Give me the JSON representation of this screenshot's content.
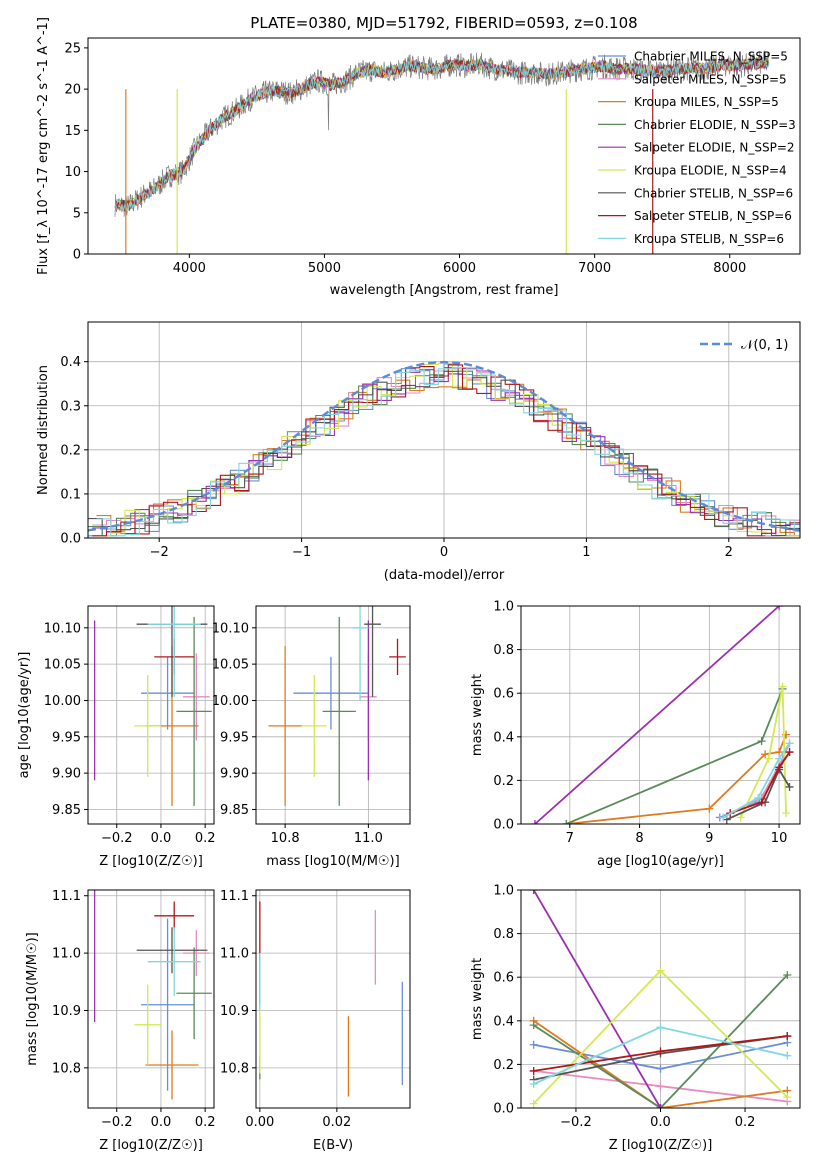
{
  "chart_data": [
    {
      "type": "line",
      "title": "PLATE=0380, MJD=51792, FIBERID=0593, z=0.108",
      "xlabel": "wavelength [Angstrom, rest frame]",
      "ylabel": "Flux [f_λ 10^-17 erg cm^-2 s^-1 A^-1]",
      "xlim": [
        3250,
        8520
      ],
      "ylim": [
        0,
        26.2
      ],
      "xticks": [
        4000,
        5000,
        6000,
        7000,
        8000
      ],
      "yticks": [
        0,
        5,
        10,
        15,
        20,
        25
      ],
      "grid": false,
      "legend": "top-right",
      "spectrum": {
        "x": [
          3450,
          3550,
          3650,
          3750,
          3850,
          3950,
          4050,
          4150,
          4250,
          4350,
          4450,
          4550,
          4650,
          4750,
          4850,
          4950,
          5050,
          5150,
          5250,
          5350,
          5450,
          5550,
          5650,
          5750,
          5850,
          5950,
          6050,
          6150,
          6250,
          6350,
          6450,
          6550,
          6650,
          6750,
          6850,
          6950,
          7050,
          7150,
          7250,
          7350,
          7450,
          7550,
          7650,
          7750,
          7850,
          7950,
          8050,
          8150,
          8250
        ],
        "y": [
          6,
          5.8,
          7,
          8,
          9.5,
          10,
          13,
          15,
          16.5,
          17.5,
          18.8,
          19.5,
          19.8,
          19.5,
          20.2,
          21,
          20.5,
          21,
          22,
          22.3,
          22,
          22.5,
          22.8,
          22.5,
          22.5,
          23,
          22.8,
          23,
          22.5,
          22.2,
          22,
          22,
          21.8,
          22,
          22.3,
          22.5,
          22.8,
          22.5,
          22.5,
          22.3,
          22.2,
          22.3,
          22.5,
          22.5,
          22.5,
          23,
          22.8,
          23,
          23.2
        ]
      },
      "series": [
        {
          "name": "Chabrier MILES, N_SSP=5",
          "color": "#6a8fd8"
        },
        {
          "name": "Salpeter MILES, N_SSP=5",
          "color": "#e88cc0"
        },
        {
          "name": "Kroupa MILES, N_SSP=5",
          "color": "#e07a1f"
        },
        {
          "name": "Chabrier ELODIE, N_SSP=3",
          "color": "#5a8a5a"
        },
        {
          "name": "Salpeter ELODIE, N_SSP=2",
          "color": "#9b30b0"
        },
        {
          "name": "Kroupa ELODIE, N_SSP=4",
          "color": "#d4e850"
        },
        {
          "name": "Chabrier STELIB, N_SSP=6",
          "color": "#555555"
        },
        {
          "name": "Salpeter STELIB, N_SSP=6",
          "color": "#b01818"
        },
        {
          "name": "Kroupa STELIB, N_SSP=6",
          "color": "#80d8e0"
        }
      ]
    },
    {
      "type": "line",
      "xlabel": "(data-model)/error",
      "ylabel": "Normed distribution",
      "xlim": [
        -2.5,
        2.5
      ],
      "ylim": [
        0,
        0.49
      ],
      "xticks": [
        -2,
        -1,
        0,
        1,
        2
      ],
      "yticks": [
        0.0,
        0.1,
        0.2,
        0.3,
        0.4
      ],
      "grid": true,
      "legend": "top-right",
      "legend_entries": [
        "𝒩(0, 1)"
      ],
      "normal": {
        "mu": 0,
        "sigma": 1,
        "color": "#5b8bd9"
      }
    },
    {
      "type": "scatter",
      "xlabel": "Z [log10(Z/Z☉)]",
      "ylabel": "age  [log10(age/yr)]",
      "xlim": [
        -0.33,
        0.24
      ],
      "ylim": [
        9.83,
        10.13
      ],
      "xticks": [
        -0.2,
        0.0,
        0.2
      ],
      "yticks": [
        9.85,
        9.9,
        9.95,
        10.0,
        10.05,
        10.1
      ],
      "grid": true,
      "points": [
        {
          "x": 0.03,
          "y": 10.01,
          "xerr": 0.12,
          "yerr": 0.05,
          "color": "#6a8fd8"
        },
        {
          "x": 0.16,
          "y": 10.005,
          "xerr": 0.06,
          "yerr": 0.06,
          "color": "#e88cc0"
        },
        {
          "x": 0.05,
          "y": 9.965,
          "xerr": 0.12,
          "yerr": 0.11,
          "color": "#e07a1f"
        },
        {
          "x": 0.15,
          "y": 9.985,
          "xerr": 0.08,
          "yerr": 0.13,
          "color": "#5a8a5a"
        },
        {
          "x": -0.3,
          "y": 10.0,
          "xerr": 0.0,
          "yerr": 0.11,
          "color": "#9b30b0"
        },
        {
          "x": -0.06,
          "y": 9.965,
          "xerr": 0.06,
          "yerr": 0.07,
          "color": "#d4e850"
        },
        {
          "x": 0.05,
          "y": 10.105,
          "xerr": 0.16,
          "yerr": 0.1,
          "color": "#555555"
        },
        {
          "x": 0.06,
          "y": 10.06,
          "xerr": 0.09,
          "yerr": 0.025,
          "color": "#b01818"
        },
        {
          "x": 0.06,
          "y": 10.105,
          "xerr": 0.12,
          "yerr": 0.1,
          "color": "#80d8e0"
        }
      ]
    },
    {
      "type": "scatter",
      "xlabel": "mass [log10(M/M☉)]",
      "ylabel": "",
      "xlim": [
        10.73,
        11.1
      ],
      "ylim": [
        9.83,
        10.13
      ],
      "xticks": [
        10.8,
        11.0
      ],
      "yticks": [
        9.85,
        9.9,
        9.95,
        10.0,
        10.05,
        10.1
      ],
      "grid": true,
      "points": [
        {
          "x": 10.91,
          "y": 10.01,
          "xerr": 0.09,
          "yerr": 0.05,
          "color": "#6a8fd8"
        },
        {
          "x": 11.0,
          "y": 10.005,
          "xerr": 0.02,
          "yerr": 0.06,
          "color": "#e88cc0"
        },
        {
          "x": 10.8,
          "y": 9.965,
          "xerr": 0.04,
          "yerr": 0.11,
          "color": "#e07a1f"
        },
        {
          "x": 10.93,
          "y": 9.985,
          "xerr": 0.04,
          "yerr": 0.13,
          "color": "#5a8a5a"
        },
        {
          "x": 11.0,
          "y": 10.0,
          "xerr": 0.0,
          "yerr": 0.11,
          "color": "#9b30b0"
        },
        {
          "x": 10.87,
          "y": 9.965,
          "xerr": 0.03,
          "yerr": 0.07,
          "color": "#d4e850"
        },
        {
          "x": 11.01,
          "y": 10.105,
          "xerr": 0.02,
          "yerr": 0.1,
          "color": "#555555"
        },
        {
          "x": 11.07,
          "y": 10.06,
          "xerr": 0.02,
          "yerr": 0.025,
          "color": "#b01818"
        },
        {
          "x": 10.98,
          "y": 10.1,
          "xerr": 0.02,
          "yerr": 0.1,
          "color": "#80d8e0"
        }
      ]
    },
    {
      "type": "line",
      "xlabel": "age  [log10(age/yr)]",
      "ylabel": "mass weight",
      "xlim": [
        6.3,
        10.3
      ],
      "ylim": [
        0,
        1.0
      ],
      "xticks": [
        7,
        8,
        9,
        10
      ],
      "yticks": [
        0.0,
        0.2,
        0.4,
        0.6,
        0.8,
        1.0
      ],
      "grid": true,
      "series": [
        {
          "name": "Chabrier MILES",
          "color": "#6a8fd8",
          "x": [
            9.15,
            9.7,
            10.0,
            10.15
          ],
          "y": [
            0.03,
            0.1,
            0.25,
            0.33
          ]
        },
        {
          "name": "Salpeter MILES",
          "color": "#e88cc0",
          "x": [
            9.3,
            9.75,
            10.05,
            10.15
          ],
          "y": [
            0.05,
            0.12,
            0.3,
            0.37
          ]
        },
        {
          "name": "Kroupa MILES",
          "color": "#e07a1f",
          "x": [
            6.95,
            9.0,
            9.8,
            10.0,
            10.1
          ],
          "y": [
            0.0,
            0.07,
            0.32,
            0.33,
            0.41
          ]
        },
        {
          "name": "Chabrier ELODIE",
          "color": "#5a8a5a",
          "x": [
            6.95,
            9.75,
            10.05
          ],
          "y": [
            0.0,
            0.38,
            0.62
          ]
        },
        {
          "name": "Salpeter ELODIE",
          "color": "#9b30b0",
          "x": [
            6.5,
            10.0
          ],
          "y": [
            0.0,
            1.0
          ]
        },
        {
          "name": "Kroupa ELODIE",
          "color": "#d4e850",
          "x": [
            9.45,
            9.85,
            10.05,
            10.1
          ],
          "y": [
            0.03,
            0.3,
            0.63,
            0.05
          ]
        },
        {
          "name": "Chabrier STELIB",
          "color": "#555555",
          "x": [
            9.25,
            9.8,
            10.0,
            10.15
          ],
          "y": [
            0.02,
            0.1,
            0.25,
            0.17
          ]
        },
        {
          "name": "Salpeter STELIB",
          "color": "#b01818",
          "x": [
            9.3,
            9.75,
            10.0,
            10.15
          ],
          "y": [
            0.05,
            0.1,
            0.26,
            0.33
          ]
        },
        {
          "name": "Kroupa STELIB",
          "color": "#80d8e0",
          "x": [
            9.2,
            9.7,
            10.0,
            10.15
          ],
          "y": [
            0.03,
            0.12,
            0.3,
            0.37
          ]
        }
      ]
    },
    {
      "type": "scatter",
      "xlabel": "Z [log10(Z/Z☉)]",
      "ylabel": "mass [log10(M/M☉)]",
      "xlim": [
        -0.33,
        0.24
      ],
      "ylim": [
        10.73,
        11.11
      ],
      "xticks": [
        -0.2,
        0.0,
        0.2
      ],
      "yticks": [
        10.8,
        10.9,
        11.0,
        11.1
      ],
      "grid": true,
      "points": [
        {
          "x": 0.03,
          "y": 10.91,
          "xerr": 0.12,
          "yerr": 0.15,
          "color": "#6a8fd8"
        },
        {
          "x": 0.16,
          "y": 11.0,
          "xerr": 0.06,
          "yerr": 0.04,
          "color": "#e88cc0"
        },
        {
          "x": 0.05,
          "y": 10.805,
          "xerr": 0.12,
          "yerr": 0.06,
          "color": "#e07a1f"
        },
        {
          "x": 0.15,
          "y": 10.93,
          "xerr": 0.08,
          "yerr": 0.08,
          "color": "#5a8a5a"
        },
        {
          "x": -0.3,
          "y": 11.0,
          "xerr": 0.0,
          "yerr": 0.12,
          "color": "#9b30b0"
        },
        {
          "x": -0.06,
          "y": 10.875,
          "xerr": 0.06,
          "yerr": 0.07,
          "color": "#d4e850"
        },
        {
          "x": 0.05,
          "y": 11.005,
          "xerr": 0.16,
          "yerr": 0.04,
          "color": "#555555"
        },
        {
          "x": 0.06,
          "y": 11.065,
          "xerr": 0.09,
          "yerr": 0.025,
          "color": "#b01818"
        },
        {
          "x": 0.06,
          "y": 10.985,
          "xerr": 0.12,
          "yerr": 0.06,
          "color": "#80d8e0"
        }
      ]
    },
    {
      "type": "scatter",
      "xlabel": "E(B-V)",
      "ylabel": "",
      "xlim": [
        -0.001,
        0.039
      ],
      "ylim": [
        10.73,
        11.11
      ],
      "xticks": [
        0.0,
        0.02
      ],
      "yticks": [
        10.8,
        10.9,
        11.0,
        11.1
      ],
      "grid": true,
      "points": [
        {
          "x": 0.037,
          "y": 10.86,
          "yerr": 0.09,
          "color": "#6a8fd8"
        },
        {
          "x": 0.03,
          "y": 11.01,
          "yerr": 0.065,
          "color": "#e88cc0"
        },
        {
          "x": 0.023,
          "y": 10.82,
          "yerr": 0.07,
          "color": "#e07a1f"
        },
        {
          "x": 0.0,
          "y": 10.8,
          "yerr": 0.02,
          "color": "#5a8a5a"
        },
        {
          "x": 0.0,
          "y": 10.85,
          "yerr": 0.06,
          "color": "#d4e850"
        },
        {
          "x": 0.0,
          "y": 11.0,
          "yerr": 0.09,
          "color": "#b01818"
        },
        {
          "x": 0.0,
          "y": 10.95,
          "yerr": 0.05,
          "color": "#80d8e0"
        }
      ]
    },
    {
      "type": "line",
      "xlabel": "Z [log10(Z/Z☉)]",
      "ylabel": "mass weight",
      "xlim": [
        -0.33,
        0.33
      ],
      "ylim": [
        0,
        1.0
      ],
      "xticks": [
        -0.2,
        0.0,
        0.2
      ],
      "yticks": [
        0.0,
        0.2,
        0.4,
        0.6,
        0.8,
        1.0
      ],
      "grid": true,
      "series": [
        {
          "name": "Chabrier MILES",
          "color": "#6a8fd8",
          "x": [
            -0.3,
            0.0,
            0.3
          ],
          "y": [
            0.29,
            0.18,
            0.3
          ]
        },
        {
          "name": "Salpeter MILES",
          "color": "#e88cc0",
          "x": [
            -0.3,
            0.0,
            0.3
          ],
          "y": [
            0.17,
            0.1,
            0.03
          ]
        },
        {
          "name": "Kroupa MILES",
          "color": "#e07a1f",
          "x": [
            -0.3,
            0.0,
            0.3
          ],
          "y": [
            0.4,
            0.0,
            0.08
          ]
        },
        {
          "name": "Chabrier ELODIE",
          "color": "#5a8a5a",
          "x": [
            -0.3,
            0.0,
            0.3
          ],
          "y": [
            0.38,
            0.0,
            0.61
          ]
        },
        {
          "name": "Salpeter ELODIE",
          "color": "#9b30b0",
          "x": [
            -0.3,
            0.0
          ],
          "y": [
            1.0,
            0.0
          ]
        },
        {
          "name": "Kroupa ELODIE",
          "color": "#d4e850",
          "x": [
            -0.3,
            0.0,
            0.3
          ],
          "y": [
            0.02,
            0.63,
            0.05
          ]
        },
        {
          "name": "Chabrier STELIB",
          "color": "#555555",
          "x": [
            -0.3,
            0.0,
            0.3
          ],
          "y": [
            0.13,
            0.25,
            0.33
          ]
        },
        {
          "name": "Salpeter STELIB",
          "color": "#b01818",
          "x": [
            -0.3,
            0.0,
            0.3
          ],
          "y": [
            0.17,
            0.26,
            0.33
          ]
        },
        {
          "name": "Kroupa STELIB",
          "color": "#80d8e0",
          "x": [
            -0.3,
            0.0,
            0.3
          ],
          "y": [
            0.11,
            0.37,
            0.24
          ]
        }
      ]
    }
  ]
}
